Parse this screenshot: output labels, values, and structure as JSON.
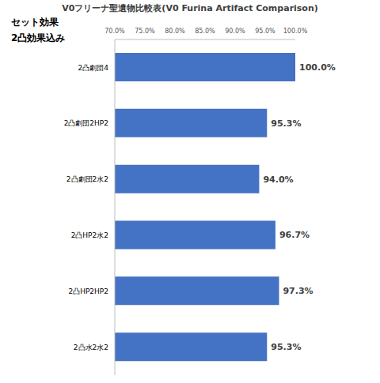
{
  "chart_data": {
    "type": "bar",
    "orientation": "horizontal",
    "title": "V0フリーナ聖遺物比較表(V0 Furina Artifact Comparison)",
    "annotations": [
      "セット効果",
      "2凸効果込み"
    ],
    "categories": [
      "2凸劇団4",
      "2凸劇団2HP2",
      "2凸劇団2水2",
      "2凸HP2水2",
      "2凸HP2HP2",
      "2凸水2水2"
    ],
    "values": [
      100.0,
      95.3,
      94.0,
      96.7,
      97.3,
      95.3
    ],
    "value_labels": [
      "100.0%",
      "95.3%",
      "94.0%",
      "96.7%",
      "97.3%",
      "95.3%"
    ],
    "data_labels": true,
    "color": "#4472c4",
    "xlim": [
      70,
      100
    ],
    "xticks": [
      {
        "value": 70,
        "label": "70.0%"
      },
      {
        "value": 75,
        "label": "75.0%"
      },
      {
        "value": 80,
        "label": "80.0%"
      },
      {
        "value": 85,
        "label": "85.0%"
      },
      {
        "value": 90,
        "label": "90.0%"
      },
      {
        "value": 95,
        "label": "95.0%"
      },
      {
        "value": 100,
        "label": "100.0%"
      }
    ],
    "grid": false
  }
}
